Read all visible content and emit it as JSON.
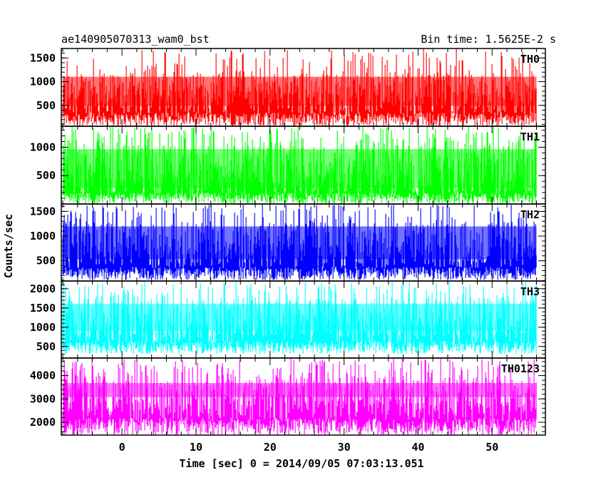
{
  "chart_data": {
    "type": "line",
    "title": "ae140905070313_wam0_bst",
    "bin_time": "Bin time: 1.5625E-2 s",
    "xlabel": "Time [sec] 0 = 2014/09/05 07:03:13.051",
    "ylabel": "Counts/sec",
    "xlim": [
      -8.2,
      57.2
    ],
    "data_x_range": [
      -8.0,
      56.0
    ],
    "x_ticks": [
      0,
      10,
      20,
      30,
      40,
      50
    ],
    "grid": false,
    "panels": [
      {
        "name": "TH0",
        "color": "#ff0000",
        "ylim": [
          60,
          1700
        ],
        "y_ticks": [
          500,
          1000,
          1500
        ],
        "baseline_low": [
          60,
          350
        ],
        "typical_band": [
          250,
          1200
        ],
        "peak_max": 1700
      },
      {
        "name": "TH1",
        "color": "#00ff00",
        "ylim": [
          0,
          1370
        ],
        "y_ticks": [
          500,
          1000
        ],
        "baseline_low": [
          0,
          200
        ],
        "typical_band": [
          100,
          1050
        ],
        "peak_max": 1370
      },
      {
        "name": "TH2",
        "color": "#0000ff",
        "ylim": [
          90,
          1650
        ],
        "y_ticks": [
          500,
          1000,
          1500
        ],
        "baseline_low": [
          110,
          380
        ],
        "typical_band": [
          350,
          1300
        ],
        "peak_max": 1650
      },
      {
        "name": "TH3",
        "color": "#00ffff",
        "ylim": [
          200,
          2200
        ],
        "y_ticks": [
          500,
          1000,
          1500,
          2000
        ],
        "baseline_low": [
          300,
          650
        ],
        "typical_band": [
          550,
          1750
        ],
        "peak_max": 2200
      },
      {
        "name": "TH0123",
        "color": "#ff00ff",
        "ylim": [
          1450,
          4750
        ],
        "y_ticks": [
          2000,
          3000,
          4000
        ],
        "baseline_low": [
          1450,
          2200
        ],
        "typical_band": [
          2000,
          4000
        ],
        "peak_max": 4750
      }
    ]
  }
}
